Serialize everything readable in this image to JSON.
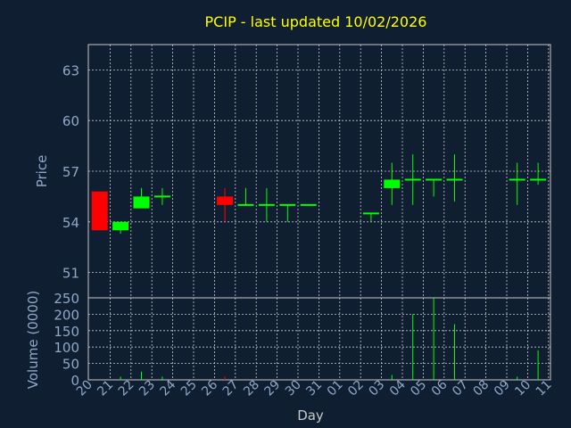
{
  "chart_data": {
    "type": "candlestick",
    "title": "PCIP - last updated 10/02/2026",
    "xlabel": "Day",
    "ylabel_price": "Price",
    "ylabel_volume": "Volume (0000)",
    "price_ylim": [
      49.5,
      64.5
    ],
    "price_ticks": [
      51,
      54,
      57,
      60,
      63
    ],
    "volume_ylim": [
      0,
      250
    ],
    "volume_ticks": [
      0,
      50,
      100,
      150,
      200,
      250
    ],
    "grid": true,
    "x_ticks": [
      "20",
      "21",
      "22",
      "23",
      "24",
      "25",
      "26",
      "27",
      "28",
      "29",
      "30",
      "31",
      "01",
      "02",
      "03",
      "04",
      "05",
      "06",
      "07",
      "08",
      "09",
      "10",
      "11"
    ],
    "colors": {
      "background": "#0f1e30",
      "title": "#ffff00",
      "axis_text": "#8fa8c8",
      "up": "#00ff00",
      "down": "#ff0000",
      "grid": "#c8c8c8"
    },
    "candles": [
      {
        "x": 0,
        "open": 55.8,
        "high": 55.8,
        "low": 53.5,
        "close": 53.5
      },
      {
        "x": 1,
        "open": 53.5,
        "high": 54.0,
        "low": 53.3,
        "close": 54.0
      },
      {
        "x": 2,
        "open": 54.8,
        "high": 56.0,
        "low": 54.8,
        "close": 55.5
      },
      {
        "x": 3,
        "open": 55.5,
        "high": 56.0,
        "low": 55.0,
        "close": 55.5
      },
      {
        "x": 6,
        "open": 55.5,
        "high": 56.0,
        "low": 54.0,
        "close": 55.0
      },
      {
        "x": 7,
        "open": 55.0,
        "high": 56.0,
        "low": 55.0,
        "close": 55.0
      },
      {
        "x": 8,
        "open": 55.0,
        "high": 56.0,
        "low": 54.0,
        "close": 55.0
      },
      {
        "x": 9,
        "open": 55.0,
        "high": 55.0,
        "low": 54.0,
        "close": 55.0
      },
      {
        "x": 10,
        "open": 55.0,
        "high": 55.0,
        "low": 55.0,
        "close": 55.0
      },
      {
        "x": 13,
        "open": 54.5,
        "high": 54.5,
        "low": 54.0,
        "close": 54.5
      },
      {
        "x": 14,
        "open": 56.0,
        "high": 57.5,
        "low": 55.0,
        "close": 56.5
      },
      {
        "x": 15,
        "open": 56.5,
        "high": 58.0,
        "low": 55.0,
        "close": 56.5
      },
      {
        "x": 16,
        "open": 56.5,
        "high": 56.5,
        "low": 55.5,
        "close": 56.5
      },
      {
        "x": 17,
        "open": 56.5,
        "high": 58.0,
        "low": 55.2,
        "close": 56.5
      },
      {
        "x": 20,
        "open": 56.5,
        "high": 57.5,
        "low": 55.0,
        "close": 56.5
      },
      {
        "x": 21,
        "open": 56.5,
        "high": 57.5,
        "low": 56.2,
        "close": 56.5
      }
    ],
    "volume": [
      {
        "x": 1,
        "value": 10,
        "dir": "up"
      },
      {
        "x": 2,
        "value": 25,
        "dir": "up"
      },
      {
        "x": 3,
        "value": 10,
        "dir": "up"
      },
      {
        "x": 6,
        "value": 10,
        "dir": "down"
      },
      {
        "x": 14,
        "value": 15,
        "dir": "up"
      },
      {
        "x": 15,
        "value": 200,
        "dir": "up"
      },
      {
        "x": 16,
        "value": 250,
        "dir": "up"
      },
      {
        "x": 17,
        "value": 170,
        "dir": "up"
      },
      {
        "x": 20,
        "value": 10,
        "dir": "up"
      },
      {
        "x": 21,
        "value": 90,
        "dir": "up"
      }
    ]
  }
}
